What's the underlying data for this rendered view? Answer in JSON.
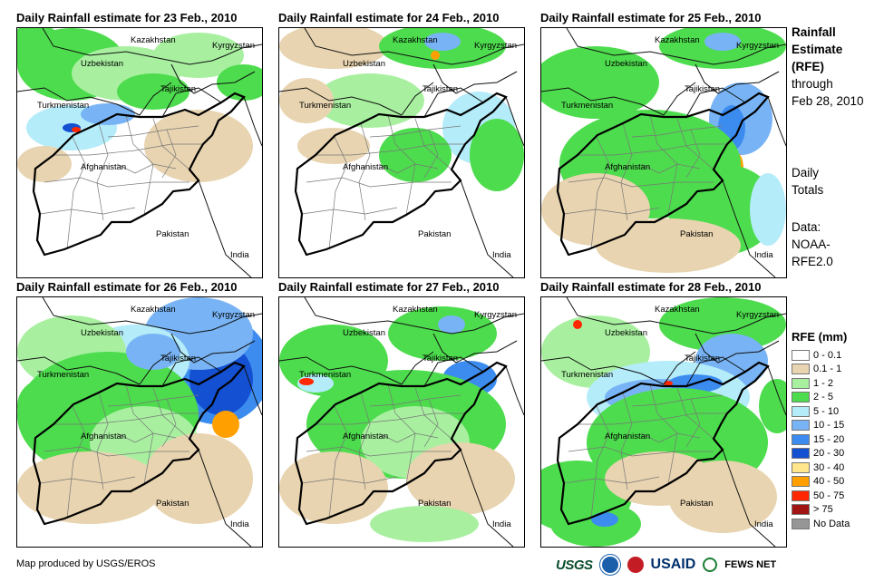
{
  "panels": [
    {
      "title": "Daily Rainfall estimate for 23 Feb., 2010"
    },
    {
      "title": "Daily Rainfall estimate for 24 Feb., 2010"
    },
    {
      "title": "Daily Rainfall estimate for 25 Feb., 2010"
    },
    {
      "title": "Daily Rainfall estimate for 26 Feb., 2010"
    },
    {
      "title": "Daily Rainfall estimate for 27 Feb., 2010"
    },
    {
      "title": "Daily Rainfall estimate for 28 Feb., 2010"
    }
  ],
  "map_labels": {
    "kazakhstan": "Kazakhstan",
    "kyrgyzstan": "Kyrgyzstan",
    "uzbekistan": "Uzbekistan",
    "tajikistan": "Tajikistan",
    "turkmenistan": "Turkmenistan",
    "afghanistan": "Afghanistan",
    "pakistan": "Pakistan",
    "india": "India"
  },
  "side_text": {
    "line1": "Rainfall",
    "line2": "Estimate",
    "line3": "(RFE)",
    "line4": "through",
    "line5": "Feb 28, 2010",
    "daily1": "Daily",
    "daily2": "Totals",
    "data1": "Data:",
    "data2": "NOAA-",
    "data3": "RFE2.0"
  },
  "legend": {
    "title": "RFE (mm)",
    "items": [
      {
        "label": "0 - 0.1",
        "color": "#ffffff"
      },
      {
        "label": "0.1 - 1",
        "color": "#e8d4b0"
      },
      {
        "label": "1 - 2",
        "color": "#a8f0a0"
      },
      {
        "label": "2 - 5",
        "color": "#4ddc4d"
      },
      {
        "label": "5 - 10",
        "color": "#b4ecfa"
      },
      {
        "label": "10 - 15",
        "color": "#78b4f5"
      },
      {
        "label": "15 - 20",
        "color": "#3c8cf0"
      },
      {
        "label": "20 - 30",
        "color": "#1450d2"
      },
      {
        "label": "30 - 40",
        "color": "#ffe68c"
      },
      {
        "label": "40 - 50",
        "color": "#ffa000"
      },
      {
        "label": "50 - 75",
        "color": "#ff2800"
      },
      {
        "label": "> 75",
        "color": "#a01414"
      },
      {
        "label": "No Data",
        "color": "#969696"
      }
    ]
  },
  "footer": {
    "credit": "Map produced by USGS/EROS",
    "logo_usgs": "USGS",
    "logo_usaid": "USAID",
    "logo_fews": "FEWS NET"
  }
}
